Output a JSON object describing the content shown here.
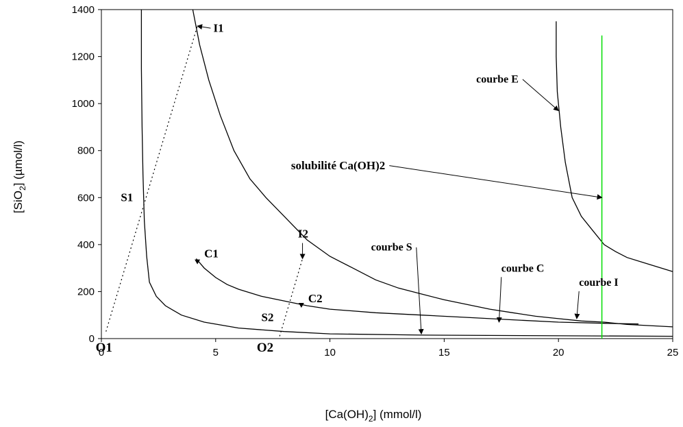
{
  "chart_data": {
    "type": "line",
    "title": "",
    "xlabel": "[Ca(OH)2] (mmol/l)",
    "ylabel": "[SiO2] (µmol/l)",
    "xlim": [
      0,
      25
    ],
    "ylim": [
      0,
      1400
    ],
    "x_ticks": [
      "0",
      "5",
      "10",
      "15",
      "20",
      "25"
    ],
    "y_ticks": [
      "0",
      "200",
      "400",
      "600",
      "800",
      "1000",
      "1200",
      "1400"
    ],
    "grid": false,
    "legend": "none",
    "series": [
      {
        "key": "courbeS",
        "color": "#000000",
        "points": [
          [
            1.75,
            1400
          ],
          [
            1.75,
            1150
          ],
          [
            1.78,
            900
          ],
          [
            1.82,
            700
          ],
          [
            1.88,
            500
          ],
          [
            1.98,
            350
          ],
          [
            2.1,
            240
          ],
          [
            2.4,
            180
          ],
          [
            2.8,
            140
          ],
          [
            3.5,
            100
          ],
          [
            4.5,
            70
          ],
          [
            6,
            45
          ],
          [
            8,
            30
          ],
          [
            10,
            20
          ],
          [
            14,
            15
          ],
          [
            20,
            12
          ],
          [
            25,
            10
          ]
        ]
      },
      {
        "key": "courbeI",
        "color": "#000000",
        "points": [
          [
            4.0,
            1400
          ],
          [
            4.3,
            1250
          ],
          [
            4.7,
            1100
          ],
          [
            5.2,
            950
          ],
          [
            5.8,
            800
          ],
          [
            6.5,
            680
          ],
          [
            7.2,
            600
          ],
          [
            8,
            520
          ],
          [
            9,
            420
          ],
          [
            10,
            350
          ],
          [
            11,
            300
          ],
          [
            12,
            250
          ],
          [
            13,
            215
          ],
          [
            14,
            190
          ],
          [
            15,
            165
          ],
          [
            16,
            145
          ],
          [
            17,
            125
          ],
          [
            18,
            110
          ],
          [
            19,
            95
          ],
          [
            20,
            85
          ],
          [
            21,
            75
          ],
          [
            22,
            70
          ],
          [
            23,
            60
          ],
          [
            24,
            55
          ],
          [
            25,
            50
          ]
        ]
      },
      {
        "key": "courbeC",
        "color": "#000000",
        "points": [
          [
            4.15,
            340
          ],
          [
            4.5,
            300
          ],
          [
            5,
            260
          ],
          [
            5.5,
            230
          ],
          [
            6,
            210
          ],
          [
            7,
            180
          ],
          [
            8,
            160
          ],
          [
            9,
            140
          ],
          [
            10,
            125
          ],
          [
            12,
            110
          ],
          [
            14,
            100
          ],
          [
            16,
            90
          ],
          [
            18,
            80
          ],
          [
            20,
            70
          ],
          [
            22,
            65
          ],
          [
            23.5,
            62
          ]
        ]
      },
      {
        "key": "courbeE",
        "color": "#000000",
        "points": [
          [
            19.9,
            1350
          ],
          [
            19.9,
            1200
          ],
          [
            19.95,
            1050
          ],
          [
            20.1,
            900
          ],
          [
            20.3,
            750
          ],
          [
            20.6,
            600
          ],
          [
            21.0,
            520
          ],
          [
            21.5,
            460
          ],
          [
            22,
            400
          ],
          [
            22.5,
            370
          ],
          [
            23,
            345
          ],
          [
            24,
            315
          ],
          [
            25,
            285
          ]
        ]
      }
    ],
    "dotted_lines": [
      {
        "key": "O1-I1",
        "points": [
          [
            0.2,
            30
          ],
          [
            4.2,
            1330
          ]
        ]
      },
      {
        "key": "O2-I2",
        "points": [
          [
            7.8,
            10
          ],
          [
            8.8,
            340
          ]
        ]
      }
    ],
    "vertical_lines": [
      {
        "key": "solubilite",
        "x": 21.9,
        "y_range": [
          0,
          1290
        ],
        "color": "#00dd00"
      }
    ],
    "points": [
      {
        "label": "C1",
        "x": 4.2,
        "y": 325
      },
      {
        "label": "C2",
        "x": 8.75,
        "y": 140
      }
    ],
    "annotations": [
      {
        "text": "courbe E",
        "x": 16.4,
        "y": 1090,
        "size": "small",
        "arrow_to": [
          20.0,
          970
        ]
      },
      {
        "text": "solubilité Ca(OH)2",
        "x": 8.3,
        "y": 720,
        "size": "normal",
        "arrow_to": [
          21.9,
          600
        ]
      },
      {
        "text": "courbe S",
        "x": 11.8,
        "y": 375,
        "size": "small",
        "arrow_to": [
          14.0,
          20
        ]
      },
      {
        "text": "courbe C",
        "x": 17.5,
        "y": 285,
        "size": "small",
        "arrow_to": [
          17.4,
          70
        ]
      },
      {
        "text": "courbe I",
        "x": 20.9,
        "y": 225,
        "size": "small",
        "arrow_to": [
          20.8,
          85
        ]
      },
      {
        "text": "I1",
        "x": 4.9,
        "y": 1305,
        "size": "normal",
        "arrow_to": [
          4.2,
          1330
        ]
      },
      {
        "text": "I2",
        "x": 8.6,
        "y": 430,
        "size": "normal",
        "arrow_to": [
          8.8,
          340
        ]
      },
      {
        "text": "S1",
        "x": 0.85,
        "y": 585,
        "size": "normal"
      },
      {
        "text": "S2",
        "x": 7.0,
        "y": 75,
        "size": "normal"
      },
      {
        "text": "C1",
        "x": 4.5,
        "y": 345,
        "size": "normal"
      },
      {
        "text": "C2",
        "x": 9.05,
        "y": 155,
        "size": "normal"
      },
      {
        "text": "O1",
        "x": -0.25,
        "y": -55,
        "size": "big"
      },
      {
        "text": "O2",
        "x": 6.8,
        "y": -55,
        "size": "big"
      }
    ]
  }
}
